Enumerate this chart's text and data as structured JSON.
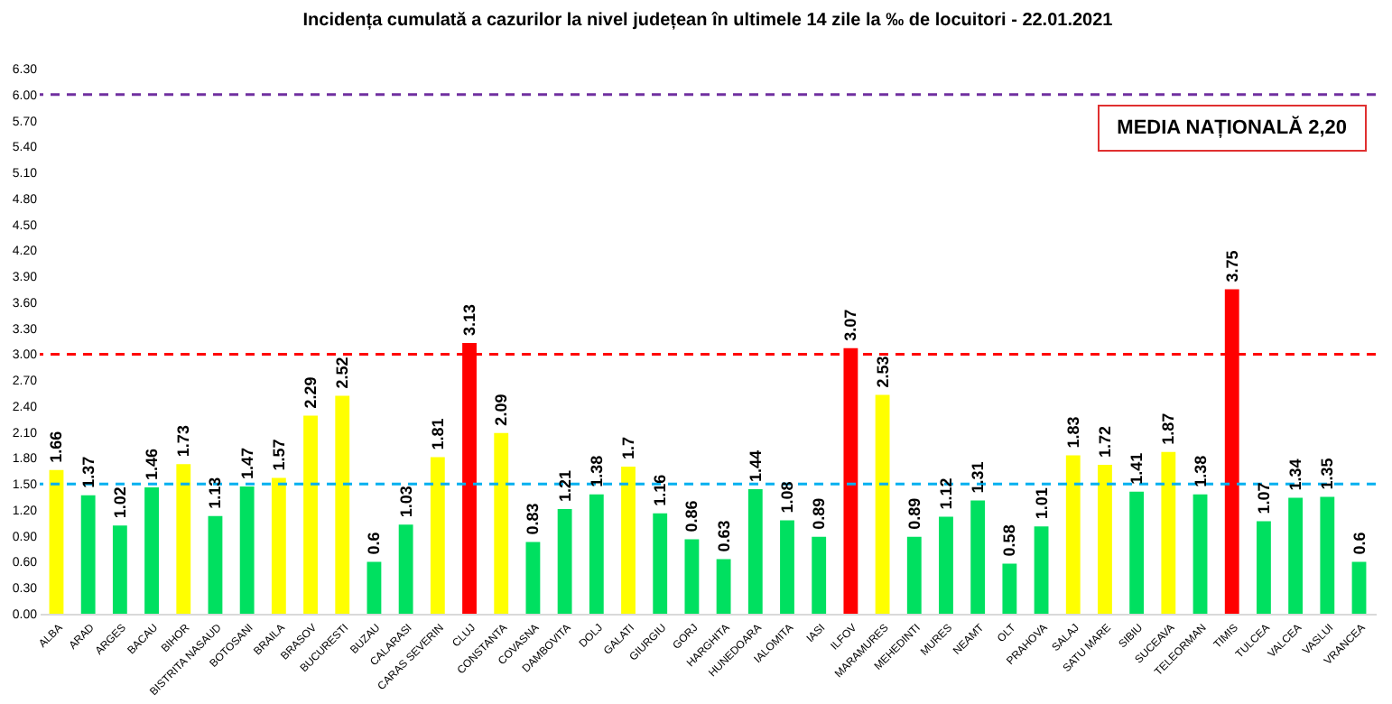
{
  "chart_data": {
    "type": "bar",
    "title": "Incidența cumulată a cazurilor la nivel județean în ultimele 14 zile la ‰ de locuitori - 22.01.2021",
    "categories": [
      "ALBA",
      "ARAD",
      "ARGES",
      "BACAU",
      "BIHOR",
      "BISTRITA NASAUD",
      "BOTOSANI",
      "BRAILA",
      "BRASOV",
      "BUCURESTI",
      "BUZAU",
      "CALARASI",
      "CARAS SEVERIN",
      "CLUJ",
      "CONSTANTA",
      "COVASNA",
      "DAMBOVITA",
      "DOLJ",
      "GALATI",
      "GIURGIU",
      "GORJ",
      "HARGHITA",
      "HUNEDOARA",
      "IALOMITA",
      "IASI",
      "ILFOV",
      "MARAMURES",
      "MEHEDINTI",
      "MURES",
      "NEAMT",
      "OLT",
      "PRAHOVA",
      "SALAJ",
      "SATU MARE",
      "SIBIU",
      "SUCEAVA",
      "TELEORMAN",
      "TIMIS",
      "TULCEA",
      "VALCEA",
      "VASLUI",
      "VRANCEA"
    ],
    "values": [
      1.66,
      1.37,
      1.02,
      1.46,
      1.73,
      1.13,
      1.47,
      1.57,
      2.29,
      2.52,
      0.6,
      1.03,
      1.81,
      3.13,
      2.09,
      0.83,
      1.21,
      1.38,
      1.7,
      1.16,
      0.86,
      0.63,
      1.44,
      1.08,
      0.89,
      3.07,
      2.53,
      0.89,
      1.12,
      1.31,
      0.58,
      1.01,
      1.83,
      1.72,
      1.41,
      1.87,
      1.38,
      3.75,
      1.07,
      1.34,
      1.35,
      0.6
    ],
    "colors": [
      "#ffff00",
      "#00e060",
      "#00e060",
      "#00e060",
      "#ffff00",
      "#00e060",
      "#00e060",
      "#ffff00",
      "#ffff00",
      "#ffff00",
      "#00e060",
      "#00e060",
      "#ffff00",
      "#ff0000",
      "#ffff00",
      "#00e060",
      "#00e060",
      "#00e060",
      "#ffff00",
      "#00e060",
      "#00e060",
      "#00e060",
      "#00e060",
      "#00e060",
      "#00e060",
      "#ff0000",
      "#ffff00",
      "#00e060",
      "#00e060",
      "#00e060",
      "#00e060",
      "#00e060",
      "#ffff00",
      "#ffff00",
      "#00e060",
      "#ffff00",
      "#00e060",
      "#ff0000",
      "#00e060",
      "#00e060",
      "#00e060",
      "#00e060"
    ],
    "ylim": [
      0,
      6.3
    ],
    "yticks": [
      {
        "value": 0,
        "label": "0.00"
      },
      {
        "value": 0.3,
        "label": "0.30"
      },
      {
        "value": 0.6,
        "label": "0.60"
      },
      {
        "value": 0.9,
        "label": "0.90"
      },
      {
        "value": 1.2,
        "label": "1.20"
      },
      {
        "value": 1.5,
        "label": "1.50"
      },
      {
        "value": 1.8,
        "label": "1.80"
      },
      {
        "value": 2.1,
        "label": "2.10"
      },
      {
        "value": 2.4,
        "label": "2.40"
      },
      {
        "value": 2.7,
        "label": "2.70"
      },
      {
        "value": 3,
        "label": "3.00"
      },
      {
        "value": 3.3,
        "label": "3.30"
      },
      {
        "value": 3.6,
        "label": "3.60"
      },
      {
        "value": 3.9,
        "label": "3.90"
      },
      {
        "value": 4.2,
        "label": "4.20"
      },
      {
        "value": 4.5,
        "label": "4.50"
      },
      {
        "value": 4.8,
        "label": "4.80"
      },
      {
        "value": 5.1,
        "label": "5.10"
      },
      {
        "value": 5.4,
        "label": "5.40"
      },
      {
        "value": 5.7,
        "label": "5.70"
      },
      {
        "value": 6,
        "label": "6.00"
      },
      {
        "value": 6.3,
        "label": "6.30"
      }
    ],
    "ref_lines": [
      {
        "axis": "y",
        "value": 6,
        "color": "#7030a0",
        "line_style": "dashed"
      },
      {
        "axis": "y",
        "value": 3,
        "color": "#ff0000",
        "line_style": "dashed"
      },
      {
        "axis": "y",
        "value": 1.5,
        "color": "#00b0f0",
        "line_style": "dashed"
      }
    ],
    "annotations": [
      "MEDIA NAȚIONALĂ 2,20"
    ],
    "data_labels": true,
    "grid": false
  }
}
